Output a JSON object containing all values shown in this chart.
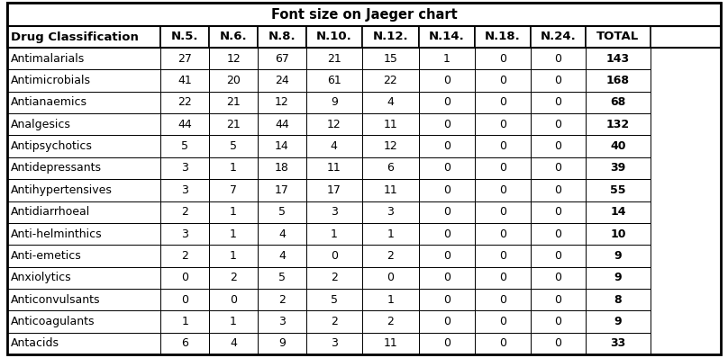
{
  "title": "Font size on Jaeger chart",
  "columns": [
    "Drug Classification",
    "N.5.",
    "N.6.",
    "N.8.",
    "N.10.",
    "N.12.",
    "N.14.",
    "N.18.",
    "N.24.",
    "TOTAL"
  ],
  "rows": [
    [
      "Antimalarials",
      "27",
      "12",
      "67",
      "21",
      "15",
      "1",
      "0",
      "0",
      "143"
    ],
    [
      "Antimicrobials",
      "41",
      "20",
      "24",
      "61",
      "22",
      "0",
      "0",
      "0",
      "168"
    ],
    [
      "Antianaemics",
      "22",
      "21",
      "12",
      "9",
      "4",
      "0",
      "0",
      "0",
      "68"
    ],
    [
      "Analgesics",
      "44",
      "21",
      "44",
      "12",
      "11",
      "0",
      "0",
      "0",
      "132"
    ],
    [
      "Antipsychotics",
      "5",
      "5",
      "14",
      "4",
      "12",
      "0",
      "0",
      "0",
      "40"
    ],
    [
      "Antidepressants",
      "3",
      "1",
      "18",
      "11",
      "6",
      "0",
      "0",
      "0",
      "39"
    ],
    [
      "Antihypertensives",
      "3",
      "7",
      "17",
      "17",
      "11",
      "0",
      "0",
      "0",
      "55"
    ],
    [
      "Antidiarrhoeal",
      "2",
      "1",
      "5",
      "3",
      "3",
      "0",
      "0",
      "0",
      "14"
    ],
    [
      "Anti-helminthics",
      "3",
      "1",
      "4",
      "1",
      "1",
      "0",
      "0",
      "0",
      "10"
    ],
    [
      "Anti-emetics",
      "2",
      "1",
      "4",
      "0",
      "2",
      "0",
      "0",
      "0",
      "9"
    ],
    [
      "Anxiolytics",
      "0",
      "2",
      "5",
      "2",
      "0",
      "0",
      "0",
      "0",
      "9"
    ],
    [
      "Anticonvulsants",
      "0",
      "0",
      "2",
      "5",
      "1",
      "0",
      "0",
      "0",
      "8"
    ],
    [
      "Anticoagulants",
      "1",
      "1",
      "3",
      "2",
      "2",
      "0",
      "0",
      "0",
      "9"
    ],
    [
      "Antacids",
      "6",
      "4",
      "9",
      "3",
      "11",
      "0",
      "0",
      "0",
      "33"
    ]
  ],
  "bg_color": "#ffffff",
  "border_color": "#000000",
  "text_color": "#000000",
  "font_size": 9,
  "title_font_size": 10.5
}
